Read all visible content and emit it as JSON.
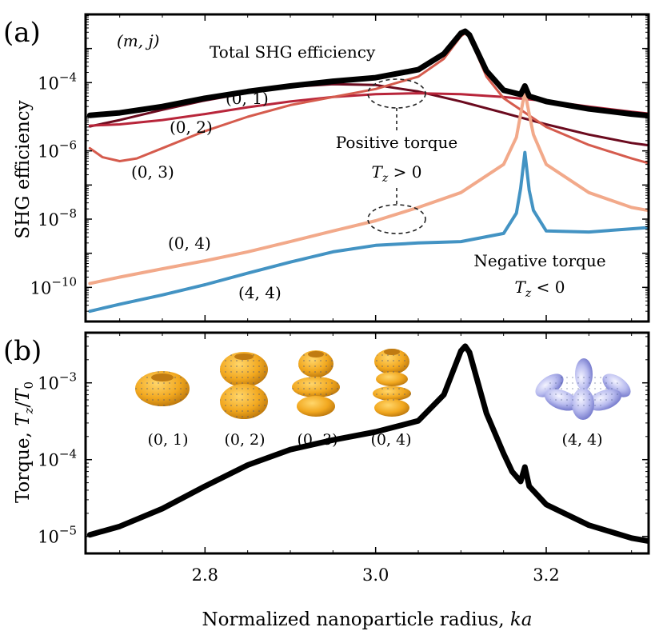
{
  "panel_labels": {
    "a": "(a)",
    "b": "(b)"
  },
  "x_axis": {
    "label": "Normalized nanoparticle radius, ka",
    "ticks": [
      "2.8",
      "3.0",
      "3.2"
    ]
  },
  "chart_data": [
    {
      "type": "line",
      "panel": "a",
      "yscale": "log",
      "ylabel": "SHG efficiency",
      "xlabel": "Normalized nanoparticle radius, ka",
      "xlim": [
        2.66,
        3.32
      ],
      "ylim": [
        1e-11,
        0.01
      ],
      "yticks": [
        {
          "value": 0.0001,
          "base": "10",
          "exp": "−4"
        },
        {
          "value": 1e-06,
          "base": "10",
          "exp": "−6"
        },
        {
          "value": 1e-08,
          "base": "10",
          "exp": "−8"
        },
        {
          "value": 1e-10,
          "base": "10",
          "exp": "−10"
        }
      ],
      "legend_title": "(m, j)",
      "series": [
        {
          "name": "Total SHG efficiency",
          "label": "Total SHG efficiency",
          "color": "#000000",
          "width": 7,
          "x": [
            2.665,
            2.7,
            2.75,
            2.8,
            2.85,
            2.9,
            2.95,
            3.0,
            3.05,
            3.08,
            3.1,
            3.105,
            3.11,
            3.13,
            3.15,
            3.17,
            3.175,
            3.18,
            3.2,
            3.25,
            3.3,
            3.325
          ],
          "y": [
            1.1e-05,
            1.3e-05,
            2e-05,
            3.5e-05,
            5.5e-05,
            8e-05,
            0.00011,
            0.00014,
            0.00024,
            0.0007,
            0.0028,
            0.0032,
            0.0025,
            0.00022,
            6e-05,
            4.5e-05,
            8e-05,
            4e-05,
            2.8e-05,
            1.7e-05,
            1.2e-05,
            1.05e-05
          ]
        },
        {
          "name": "(0,1)",
          "label": "(0, 1)",
          "color": "#6b0a1e",
          "width": 3,
          "x": [
            2.665,
            2.7,
            2.75,
            2.8,
            2.85,
            2.9,
            2.95,
            3.0,
            3.05,
            3.1,
            3.15,
            3.2,
            3.25,
            3.3,
            3.325
          ],
          "y": [
            5.2e-06,
            8e-06,
            1.6e-05,
            3e-05,
            5e-05,
            7.5e-05,
            9e-05,
            8.5e-05,
            5.5e-05,
            2.8e-05,
            1.3e-05,
            6e-06,
            3e-06,
            1.7e-06,
            1.4e-06
          ]
        },
        {
          "name": "(0,2)",
          "label": "(0, 2)",
          "color": "#b8253a",
          "width": 3,
          "x": [
            2.665,
            2.7,
            2.75,
            2.8,
            2.85,
            2.9,
            2.95,
            3.0,
            3.05,
            3.1,
            3.15,
            3.2,
            3.25,
            3.3,
            3.325
          ],
          "y": [
            5.5e-06,
            6e-06,
            8e-06,
            1.2e-05,
            1.9e-05,
            2.8e-05,
            3.8e-05,
            4.6e-05,
            4.9e-05,
            4.6e-05,
            3.8e-05,
            2.9e-05,
            2e-05,
            1.4e-05,
            1.2e-05
          ]
        },
        {
          "name": "(0,3)",
          "label": "(0, 3)",
          "color": "#d55b4d",
          "width": 3,
          "x": [
            2.665,
            2.68,
            2.7,
            2.72,
            2.75,
            2.8,
            2.85,
            2.9,
            2.95,
            3.0,
            3.05,
            3.08,
            3.1,
            3.105,
            3.11,
            3.13,
            3.15,
            3.2,
            3.25,
            3.3,
            3.325
          ],
          "y": [
            1.2e-06,
            6.5e-07,
            5e-07,
            6e-07,
            1.2e-06,
            3.8e-06,
            1e-05,
            2.2e-05,
            3.8e-05,
            6.5e-05,
            0.00015,
            0.0005,
            0.0023,
            0.0028,
            0.0022,
            0.00015,
            3.5e-05,
            5e-06,
            1.5e-06,
            6e-07,
            4e-07
          ]
        },
        {
          "name": "(0,4)",
          "label": "(0, 4)",
          "color": "#f2a98a",
          "width": 4,
          "x": [
            2.665,
            2.7,
            2.75,
            2.8,
            2.85,
            2.9,
            2.95,
            3.0,
            3.05,
            3.1,
            3.15,
            3.165,
            3.17,
            3.175,
            3.18,
            3.185,
            3.2,
            3.25,
            3.3,
            3.325
          ],
          "y": [
            1.3e-10,
            2e-10,
            3.5e-10,
            6e-10,
            1.1e-09,
            2.2e-09,
            4.5e-09,
            9e-09,
            2.2e-08,
            6e-08,
            4e-07,
            2.5e-06,
            1.2e-05,
            5.5e-05,
            1.2e-05,
            3e-06,
            4e-07,
            6e-08,
            2.2e-08,
            1.7e-08
          ]
        },
        {
          "name": "(4,4)",
          "label": "(4, 4)",
          "color": "#4393c3",
          "width": 4,
          "x": [
            2.665,
            2.7,
            2.75,
            2.8,
            2.85,
            2.9,
            2.95,
            3.0,
            3.05,
            3.1,
            3.15,
            3.165,
            3.17,
            3.175,
            3.18,
            3.185,
            3.2,
            3.25,
            3.3,
            3.325
          ],
          "y": [
            2e-11,
            3.2e-11,
            6e-11,
            1.2e-10,
            2.6e-10,
            5.5e-10,
            1.1e-09,
            1.7e-09,
            2e-09,
            2.2e-09,
            3.8e-09,
            1.5e-08,
            8e-08,
            9e-07,
            7e-08,
            1.8e-08,
            4.5e-09,
            4.2e-09,
            5.2e-09,
            5.8e-09
          ]
        }
      ],
      "annotations": {
        "positive_torque_line1": "Positive torque",
        "positive_torque_line2": "Tz > 0",
        "negative_torque_line1": "Negative torque",
        "negative_torque_line2": "Tz < 0"
      }
    },
    {
      "type": "line",
      "panel": "b",
      "yscale": "log",
      "ylabel": "Torque, Tz/T0",
      "xlabel": "Normalized nanoparticle radius, ka",
      "xlim": [
        2.66,
        3.32
      ],
      "ylim": [
        6e-06,
        0.0045
      ],
      "yticks": [
        {
          "value": 0.001,
          "base": "10",
          "exp": "−3"
        },
        {
          "value": 0.0001,
          "base": "10",
          "exp": "−4"
        },
        {
          "value": 1e-05,
          "base": "10",
          "exp": "−5"
        }
      ],
      "series": [
        {
          "name": "Torque",
          "color": "#000000",
          "width": 7,
          "x": [
            2.665,
            2.7,
            2.75,
            2.8,
            2.85,
            2.9,
            2.95,
            3.0,
            3.05,
            3.08,
            3.1,
            3.105,
            3.11,
            3.13,
            3.15,
            3.16,
            3.17,
            3.175,
            3.18,
            3.2,
            3.25,
            3.3,
            3.325
          ],
          "y": [
            1.05e-05,
            1.35e-05,
            2.3e-05,
            4.5e-05,
            8.5e-05,
            0.000135,
            0.00018,
            0.00023,
            0.00032,
            0.0007,
            0.0026,
            0.003,
            0.0025,
            0.0004,
            0.00012,
            7e-05,
            5.2e-05,
            8e-05,
            4.5e-05,
            2.6e-05,
            1.4e-05,
            9.5e-06,
            8.5e-06
          ]
        }
      ],
      "inset_labels": [
        "(0, 1)",
        "(0, 2)",
        "(0, 3)",
        "(0, 4)",
        "(4, 4)"
      ]
    }
  ]
}
